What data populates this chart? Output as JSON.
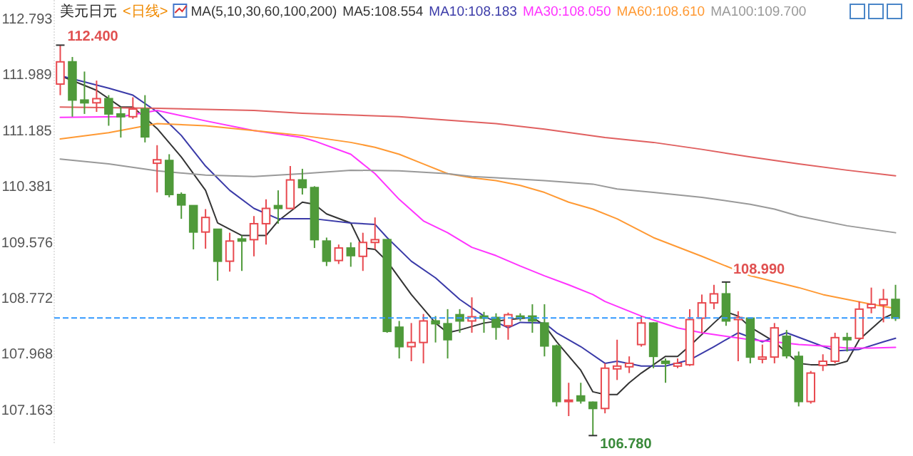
{
  "chart_data": {
    "type": "candlestick",
    "title": "美元日元",
    "subtitle": "<日线>",
    "annotations": [
      "MA(5,10,30,60,100,200)",
      "112.400",
      {
        "text": "108.990",
        "y": 108.99
      },
      "106.780"
    ],
    "categories": [
      null,
      null,
      null,
      null,
      null,
      null,
      null,
      null,
      null,
      null,
      null,
      null,
      null,
      null,
      null,
      null,
      null,
      null,
      null,
      null,
      null,
      null,
      null,
      null,
      null,
      null,
      null,
      null,
      null,
      null,
      null,
      null,
      null,
      null,
      null,
      null,
      null,
      null,
      null,
      null,
      null,
      null,
      null,
      null,
      null,
      null,
      null,
      null,
      null,
      null,
      null,
      null,
      null,
      null,
      null,
      null,
      null,
      null,
      null,
      null,
      null,
      null,
      null,
      null,
      null,
      null,
      null,
      null,
      null,
      null
    ],
    "ohlc": [
      [
        111.84,
        112.4,
        111.68,
        112.16
      ],
      [
        112.16,
        112.23,
        111.37,
        111.61
      ],
      [
        111.61,
        112.02,
        111.41,
        111.57
      ],
      [
        111.57,
        111.89,
        111.44,
        111.63
      ],
      [
        111.63,
        111.68,
        111.24,
        111.41
      ],
      [
        111.41,
        111.51,
        111.07,
        111.37
      ],
      [
        111.37,
        111.65,
        111.34,
        111.48
      ],
      [
        111.48,
        111.68,
        111.0,
        111.08
      ],
      [
        110.7,
        110.96,
        110.28,
        110.75
      ],
      [
        110.74,
        110.83,
        110.21,
        110.25
      ],
      [
        110.25,
        110.28,
        109.9,
        110.1
      ],
      [
        110.09,
        110.09,
        109.46,
        109.71
      ],
      [
        109.71,
        110.04,
        109.47,
        109.92
      ],
      [
        109.75,
        109.75,
        109.01,
        109.29
      ],
      [
        109.29,
        109.7,
        109.14,
        109.58
      ],
      [
        109.61,
        109.66,
        109.15,
        109.58
      ],
      [
        109.6,
        109.94,
        109.36,
        109.83
      ],
      [
        109.83,
        110.18,
        109.53,
        110.05
      ],
      [
        110.09,
        110.31,
        109.83,
        110.05
      ],
      [
        110.05,
        110.66,
        110.04,
        110.46
      ],
      [
        110.46,
        110.62,
        110.25,
        110.35
      ],
      [
        110.35,
        110.37,
        109.48,
        109.6
      ],
      [
        109.58,
        109.63,
        109.22,
        109.29
      ],
      [
        109.3,
        109.53,
        109.25,
        109.48
      ],
      [
        109.48,
        109.56,
        109.21,
        109.37
      ],
      [
        109.36,
        109.7,
        109.15,
        109.56
      ],
      [
        109.56,
        109.92,
        109.46,
        109.6
      ],
      [
        109.6,
        109.6,
        108.26,
        108.28
      ],
      [
        108.34,
        108.43,
        107.89,
        108.06
      ],
      [
        108.06,
        108.4,
        107.85,
        108.12
      ],
      [
        108.12,
        108.53,
        107.82,
        108.43
      ],
      [
        108.43,
        108.5,
        108.12,
        108.39
      ],
      [
        108.39,
        108.6,
        107.89,
        108.16
      ],
      [
        108.52,
        108.6,
        108.26,
        108.43
      ],
      [
        108.43,
        108.77,
        108.26,
        108.49
      ],
      [
        108.5,
        108.56,
        108.26,
        108.47
      ],
      [
        108.48,
        108.54,
        108.16,
        108.34
      ],
      [
        108.36,
        108.55,
        108.16,
        108.52
      ],
      [
        108.5,
        108.54,
        108.43,
        108.48
      ],
      [
        108.5,
        108.67,
        108.26,
        108.43
      ],
      [
        108.4,
        108.67,
        107.92,
        108.07
      ],
      [
        108.07,
        108.09,
        107.2,
        107.27
      ],
      [
        107.27,
        107.54,
        107.06,
        107.29
      ],
      [
        107.35,
        107.54,
        107.24,
        107.28
      ],
      [
        107.26,
        107.27,
        106.78,
        107.17
      ],
      [
        107.17,
        107.82,
        107.1,
        107.75
      ],
      [
        107.74,
        108.16,
        107.58,
        107.78
      ],
      [
        107.77,
        107.92,
        107.68,
        107.82
      ],
      [
        108.09,
        108.5,
        108.06,
        108.4
      ],
      [
        108.4,
        108.41,
        107.75,
        107.92
      ],
      [
        107.85,
        107.89,
        107.54,
        107.82
      ],
      [
        107.78,
        107.89,
        107.75,
        107.82
      ],
      [
        107.8,
        108.6,
        107.78,
        108.45
      ],
      [
        108.47,
        108.81,
        108.26,
        108.69
      ],
      [
        108.69,
        108.95,
        108.6,
        108.82
      ],
      [
        108.82,
        108.99,
        108.36,
        108.43
      ],
      [
        108.45,
        108.57,
        107.85,
        108.48
      ],
      [
        108.47,
        108.47,
        107.82,
        107.91
      ],
      [
        107.88,
        108.09,
        107.82,
        107.91
      ],
      [
        107.91,
        108.4,
        107.82,
        108.33
      ],
      [
        108.21,
        108.3,
        107.89,
        107.93
      ],
      [
        107.92,
        107.99,
        107.2,
        107.27
      ],
      [
        107.27,
        107.71,
        107.24,
        107.68
      ],
      [
        107.79,
        107.95,
        107.71,
        107.85
      ],
      [
        107.85,
        108.26,
        107.82,
        108.19
      ],
      [
        108.19,
        108.26,
        107.99,
        108.16
      ],
      [
        108.18,
        108.71,
        108.16,
        108.6
      ],
      [
        108.62,
        108.91,
        108.54,
        108.67
      ],
      [
        108.66,
        108.89,
        108.41,
        108.74
      ],
      [
        108.74,
        108.95,
        108.43,
        108.47
      ]
    ],
    "series": [
      {
        "type": "line",
        "name": "MA5:108.554",
        "color": "#333333",
        "values": [
          111.96,
          null,
          null,
          111.75,
          null,
          111.51,
          111.51,
          null,
          111.2,
          null,
          110.79,
          null,
          110.31,
          109.84,
          null,
          109.66,
          null,
          109.66,
          109.87,
          null,
          110.14,
          110.11,
          109.97,
          null,
          109.84,
          109.48,
          109.46,
          109.29,
          null,
          108.81,
          null,
          108.4,
          108.26,
          108.3,
          null,
          108.4,
          null,
          108.45,
          null,
          108.48,
          108.37,
          108.13,
          null,
          107.72,
          107.41,
          107.37,
          107.37,
          107.54,
          107.68,
          null,
          107.92,
          107.92,
          108.07,
          null,
          108.4,
          108.56,
          108.5,
          108.34,
          null,
          108.13,
          null,
          107.82,
          107.8,
          null,
          107.8,
          107.85,
          108.16,
          null,
          108.47,
          108.55
        ]
      },
      {
        "type": "line",
        "name": "MA10:108.183",
        "color": "#3a3aa8",
        "values": [
          111.96,
          null,
          null,
          null,
          111.78,
          null,
          111.68,
          null,
          111.44,
          null,
          111.1,
          null,
          110.66,
          null,
          110.31,
          null,
          110.05,
          null,
          109.9,
          null,
          109.9,
          109.9,
          null,
          null,
          109.84,
          null,
          109.82,
          109.63,
          null,
          109.29,
          null,
          109.05,
          null,
          108.74,
          null,
          108.5,
          null,
          108.33,
          108.41,
          null,
          108.4,
          108.26,
          null,
          108.06,
          null,
          107.82,
          107.85,
          null,
          107.78,
          null,
          107.78,
          null,
          107.87,
          null,
          108.06,
          null,
          108.26,
          null,
          108.13,
          null,
          108.26,
          null,
          108.13,
          null,
          108.0,
          null,
          108.02,
          null,
          108.13,
          108.18
        ]
      },
      {
        "type": "line",
        "name": "MA30:108.050",
        "color": "#ff33ff",
        "values": [
          111.36,
          null,
          null,
          null,
          null,
          111.37,
          null,
          null,
          111.46,
          null,
          null,
          null,
          111.31,
          null,
          null,
          null,
          111.17,
          null,
          null,
          null,
          111.07,
          111.02,
          null,
          null,
          110.83,
          null,
          110.55,
          null,
          110.18,
          null,
          109.87,
          null,
          109.7,
          null,
          109.49,
          null,
          109.37,
          null,
          109.22,
          null,
          109.08,
          null,
          108.95,
          null,
          108.81,
          108.71,
          null,
          null,
          108.5,
          null,
          null,
          108.33,
          null,
          108.26,
          null,
          108.21,
          null,
          108.16,
          null,
          108.13,
          null,
          108.09,
          null,
          108.07,
          null,
          108.04,
          null,
          108.04,
          null,
          108.05
        ]
      },
      {
        "type": "line",
        "name": "MA60:108.610",
        "color": "#ff9933",
        "values": [
          111.05,
          null,
          null,
          null,
          111.14,
          null,
          null,
          null,
          111.27,
          null,
          null,
          null,
          111.24,
          null,
          null,
          null,
          111.17,
          null,
          null,
          null,
          111.1,
          null,
          null,
          null,
          111.0,
          null,
          110.93,
          null,
          110.83,
          null,
          110.69,
          null,
          110.55,
          null,
          110.49,
          null,
          110.45,
          null,
          110.38,
          null,
          110.28,
          null,
          110.14,
          null,
          110.04,
          null,
          109.9,
          null,
          null,
          109.63,
          null,
          null,
          null,
          109.36,
          null,
          null,
          null,
          109.08,
          null,
          null,
          null,
          108.91,
          null,
          108.81,
          null,
          108.74,
          null,
          108.67,
          null,
          108.61
        ]
      },
      {
        "type": "line",
        "name": "MA100:109.700",
        "color": "#999999",
        "values": [
          110.76,
          null,
          null,
          null,
          110.69,
          null,
          null,
          null,
          110.59,
          null,
          null,
          null,
          110.53,
          null,
          null,
          null,
          110.51,
          null,
          null,
          null,
          110.55,
          null,
          null,
          null,
          110.6,
          null,
          null,
          null,
          110.59,
          null,
          null,
          null,
          110.55,
          null,
          110.51,
          null,
          110.49,
          null,
          null,
          null,
          110.45,
          null,
          null,
          null,
          110.4,
          null,
          110.33,
          null,
          null,
          110.28,
          null,
          null,
          null,
          110.21,
          null,
          null,
          null,
          110.11,
          null,
          110.04,
          null,
          109.94,
          null,
          null,
          null,
          109.8,
          null,
          null,
          null,
          109.7
        ]
      },
      {
        "type": "line",
        "color": "#e06060",
        "values": [
          111.51,
          null,
          null,
          null,
          null,
          null,
          null,
          null,
          111.49,
          null,
          null,
          null,
          null,
          null,
          null,
          null,
          111.46,
          null,
          null,
          null,
          111.42,
          null,
          null,
          null,
          null,
          null,
          null,
          null,
          111.37,
          null,
          null,
          null,
          null,
          null,
          null,
          null,
          111.27,
          null,
          null,
          null,
          111.19,
          null,
          null,
          null,
          null,
          111.07,
          null,
          null,
          null,
          111.0,
          null,
          null,
          null,
          110.9,
          null,
          null,
          null,
          110.79,
          null,
          null,
          null,
          110.69,
          null,
          null,
          null,
          110.6,
          null,
          null,
          null,
          110.52
        ]
      }
    ],
    "ylim": [
      106.65,
      113.05
    ],
    "yticks": [
      112.793,
      111.989,
      111.185,
      110.381,
      109.576,
      108.772,
      107.968,
      107.163
    ],
    "ref_lines": [
      {
        "axis": "y",
        "value": 108.474,
        "color": "#3399ff",
        "line_style": "dashed"
      }
    ],
    "legend": "top",
    "grid": false
  }
}
